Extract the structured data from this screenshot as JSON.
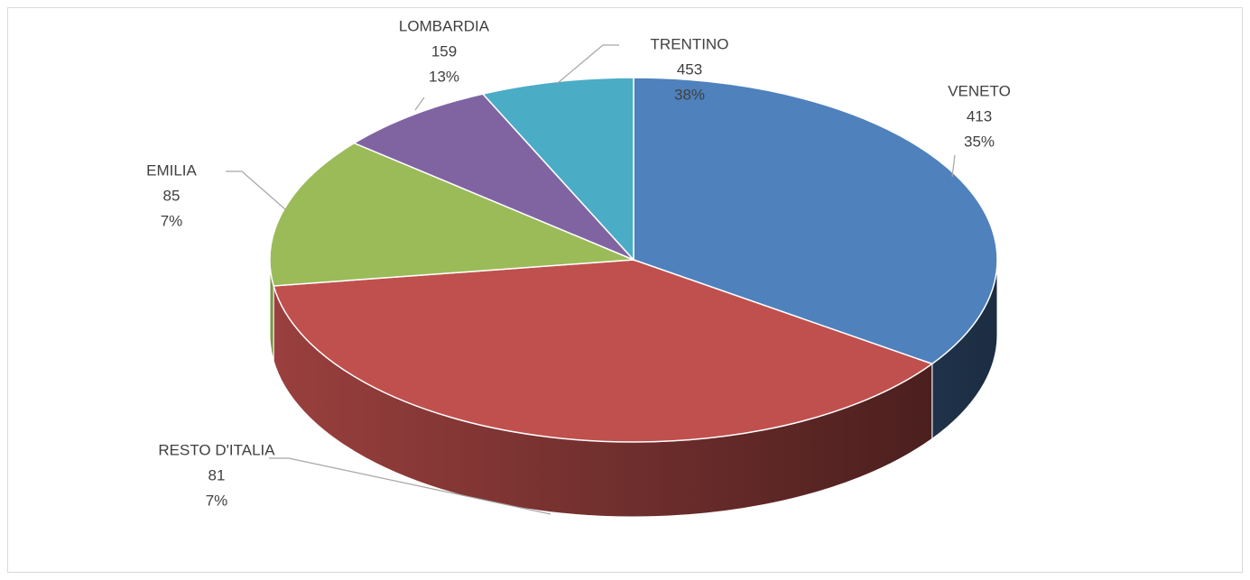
{
  "chart_data": {
    "type": "pie3d",
    "categories": [
      "VENETO",
      "TRENTINO",
      "LOMBARDIA",
      "EMILIA",
      "RESTO D'ITALIA"
    ],
    "values": [
      413,
      453,
      159,
      85,
      81
    ],
    "percent_labels": [
      "35%",
      "38%",
      "13%",
      "7%",
      "7%"
    ],
    "colors": [
      "#4f81bd",
      "#c0504d",
      "#9bbb59",
      "#8064a2",
      "#4bacc6"
    ]
  }
}
